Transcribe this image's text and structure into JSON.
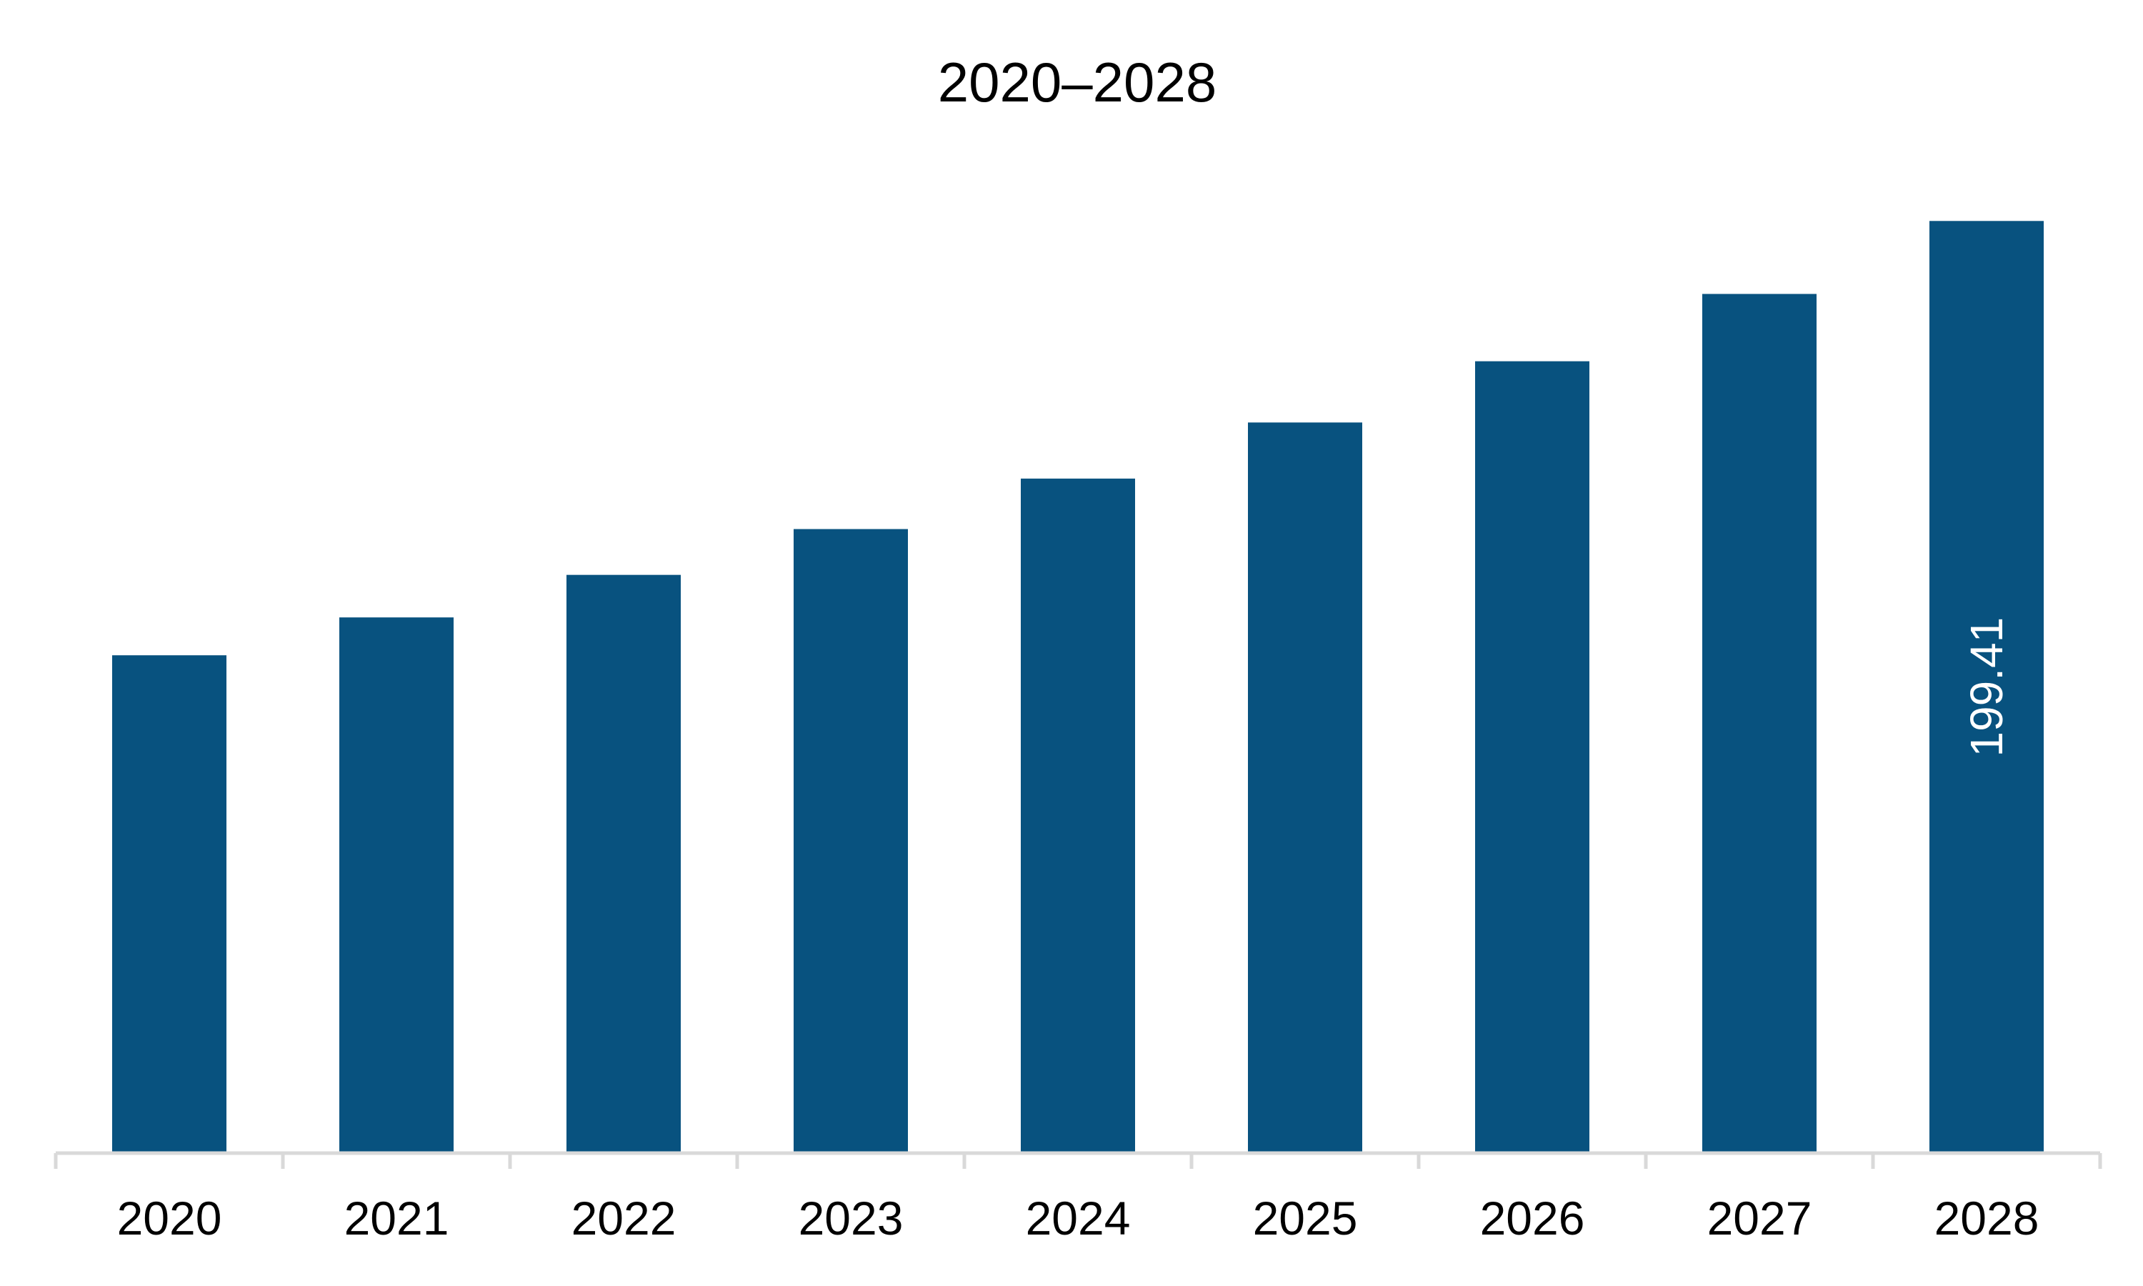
{
  "chart_data": {
    "type": "bar",
    "title": "2020–2028",
    "xlabel": "",
    "ylabel": "",
    "categories": [
      "2020",
      "2021",
      "2022",
      "2023",
      "2024",
      "2025",
      "2026",
      "2027",
      "2028"
    ],
    "values": [
      106.5,
      114.6,
      123.7,
      133.5,
      144.3,
      156.3,
      169.4,
      183.8,
      199.41
    ],
    "data_labels": [
      null,
      null,
      null,
      null,
      null,
      null,
      null,
      null,
      "199.41"
    ],
    "ylim": [
      0,
      210
    ],
    "grid": false,
    "legend": "none",
    "colors": {
      "bar": "#08527f",
      "axis": "#d9d9d9",
      "text": "#000000",
      "data_label": "#ffffff"
    }
  }
}
